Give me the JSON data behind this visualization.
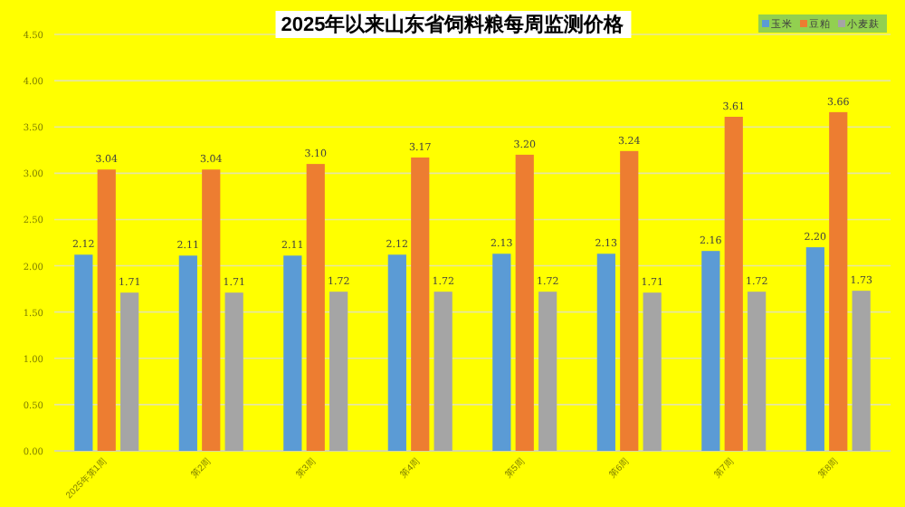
{
  "chart_data": {
    "type": "bar",
    "title": "2025年以来山东省饲料粮每周监测价格",
    "categories": [
      "2025年第1周",
      "第2周",
      "第3周",
      "第4周",
      "第5周",
      "第6周",
      "第7周",
      "第8周"
    ],
    "series": [
      {
        "name": "玉米",
        "color": "#5b9bd5",
        "values": [
          2.12,
          2.11,
          2.11,
          2.12,
          2.13,
          2.13,
          2.16,
          2.2
        ],
        "value_labels": [
          "2.12",
          "2.11",
          "2.11",
          "2.12",
          "2.13",
          "2.13",
          "2.16",
          "2.20"
        ]
      },
      {
        "name": "豆粕",
        "color": "#ed7d31",
        "values": [
          3.04,
          3.04,
          3.1,
          3.17,
          3.2,
          3.24,
          3.61,
          3.66
        ],
        "value_labels": [
          "3.04",
          "3.04",
          "3.10",
          "3.17",
          "3.20",
          "3.24",
          "3.61",
          "3.66"
        ]
      },
      {
        "name": "小麦麸",
        "color": "#a5a5a5",
        "values": [
          1.71,
          1.71,
          1.72,
          1.72,
          1.72,
          1.71,
          1.72,
          1.73
        ],
        "value_labels": [
          "1.71",
          "1.71",
          "1.72",
          "1.72",
          "1.72",
          "1.71",
          "1.72",
          "1.73"
        ]
      }
    ],
    "ylim": [
      0,
      4.5
    ],
    "yticks": [
      {
        "value": 0,
        "label": "0.00"
      },
      {
        "value": 0.5,
        "label": "0.50"
      },
      {
        "value": 1,
        "label": "1.00"
      },
      {
        "value": 1.5,
        "label": "1.50"
      },
      {
        "value": 2,
        "label": "2.00"
      },
      {
        "value": 2.5,
        "label": "2.50"
      },
      {
        "value": 3,
        "label": "3.00"
      },
      {
        "value": 3.5,
        "label": "3.50"
      },
      {
        "value": 4,
        "label": "4.00"
      },
      {
        "value": 4.5,
        "label": "4.50"
      }
    ],
    "grid": "y",
    "legend": "top right"
  }
}
